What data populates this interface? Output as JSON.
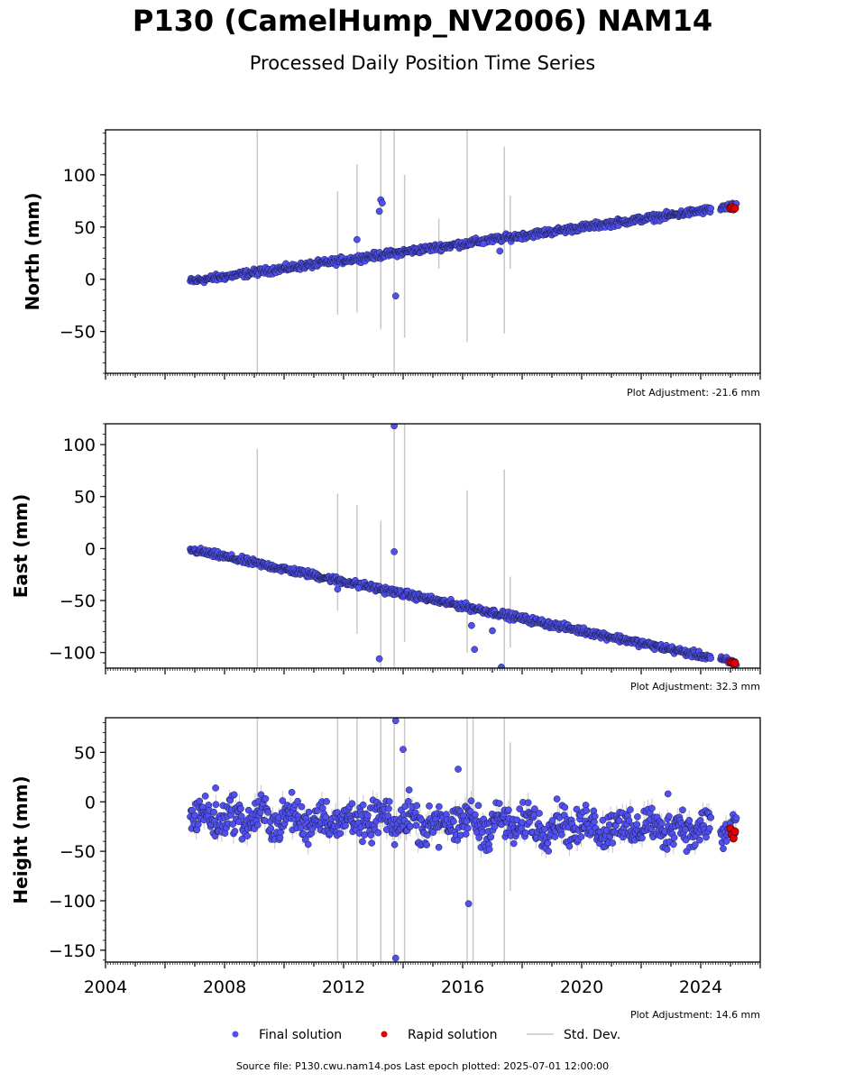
{
  "title": "P130 (CamelHump_NV2006) NAM14",
  "subtitle": "Processed Daily Position Time Series",
  "source_note": "Source file: P130.cwu.nam14.pos  Last epoch plotted: 2025-07-01 12:00:00",
  "legend": {
    "final": "Final solution",
    "rapid": "Rapid solution",
    "std": "Std. Dev."
  },
  "colors": {
    "final": "#5050f0",
    "rapid": "#e00000",
    "std": "#c8c8c8",
    "edge": "#1a1a40"
  },
  "chart_data": [
    {
      "type": "scatter",
      "ylabel": "North (mm)",
      "adjustment": "Plot Adjustment: -21.6 mm",
      "xlim": [
        2004.0,
        2026.0
      ],
      "ylim": [
        -90,
        143
      ],
      "yticks": [
        -50,
        0,
        50,
        100
      ],
      "xticks": [
        2004,
        2008,
        2012,
        2016,
        2020,
        2024
      ],
      "series": [
        {
          "name": "Final solution",
          "trend": {
            "x": [
              2006.85,
              2025.2
            ],
            "y": [
              -2,
              70
            ]
          },
          "gaps": [
            [
              2024.35,
              2024.65
            ]
          ],
          "outliers": [
            [
              2013.25,
              76
            ],
            [
              2013.3,
              73
            ],
            [
              2013.2,
              65
            ],
            [
              2013.75,
              -16
            ],
            [
              2012.45,
              38
            ],
            [
              2017.25,
              27
            ],
            [
              2016.7,
              34
            ]
          ]
        },
        {
          "name": "Rapid solution",
          "points": [
            [
              2025.0,
              68
            ],
            [
              2025.05,
              69
            ],
            [
              2025.1,
              67
            ],
            [
              2025.15,
              68
            ]
          ]
        }
      ],
      "std_dev_bars": [
        [
          2009.1,
          -90,
          143
        ],
        [
          2011.8,
          -34,
          84
        ],
        [
          2012.45,
          -32,
          110
        ],
        [
          2013.25,
          -48,
          143
        ],
        [
          2013.7,
          -90,
          143
        ],
        [
          2014.05,
          -56,
          100
        ],
        [
          2016.15,
          -60,
          143
        ],
        [
          2017.4,
          -52,
          127
        ],
        [
          2017.6,
          10,
          80
        ],
        [
          2015.2,
          10,
          58
        ]
      ]
    },
    {
      "type": "scatter",
      "ylabel": "East (mm)",
      "adjustment": "Plot Adjustment: 32.3 mm",
      "xlim": [
        2004.0,
        2026.0
      ],
      "ylim": [
        -115,
        120
      ],
      "yticks": [
        -100,
        -50,
        0,
        50,
        100
      ],
      "xticks": [
        2004,
        2008,
        2012,
        2016,
        2020,
        2024
      ],
      "series": [
        {
          "name": "Final solution",
          "trend": {
            "x": [
              2006.85,
              2025.2
            ],
            "y": [
              -1,
              -110
            ]
          },
          "gaps": [
            [
              2024.35,
              2024.65
            ]
          ],
          "outliers": [
            [
              2013.7,
              118
            ],
            [
              2013.7,
              -3
            ],
            [
              2013.2,
              -106
            ],
            [
              2016.3,
              -74
            ],
            [
              2016.4,
              -97
            ],
            [
              2017.0,
              -79
            ],
            [
              2017.3,
              -114
            ],
            [
              2011.8,
              -39
            ],
            [
              2012.5,
              -38
            ]
          ]
        },
        {
          "name": "Rapid solution",
          "points": [
            [
              2025.0,
              -109
            ],
            [
              2025.05,
              -110
            ],
            [
              2025.1,
              -111
            ],
            [
              2025.15,
              -110
            ]
          ]
        }
      ],
      "std_dev_bars": [
        [
          2009.1,
          -115,
          96
        ],
        [
          2011.8,
          -60,
          53
        ],
        [
          2012.45,
          -82,
          42
        ],
        [
          2013.25,
          -115,
          27
        ],
        [
          2013.7,
          -115,
          120
        ],
        [
          2014.05,
          -90,
          120
        ],
        [
          2016.15,
          -100,
          56
        ],
        [
          2017.4,
          -115,
          76
        ],
        [
          2017.6,
          -95,
          -27
        ]
      ]
    },
    {
      "type": "scatter",
      "ylabel": "Height (mm)",
      "adjustment": "Plot Adjustment: 14.6 mm",
      "xlim": [
        2004.0,
        2026.0
      ],
      "ylim": [
        -162,
        85
      ],
      "yticks": [
        -150,
        -100,
        -50,
        0,
        50
      ],
      "xticks": [
        2004,
        2008,
        2012,
        2016,
        2020,
        2024
      ],
      "xticklabels": [
        "2004",
        "2008",
        "2012",
        "2016",
        "2020",
        "2024"
      ],
      "series": [
        {
          "name": "Final solution",
          "trend": {
            "x": [
              2006.85,
              2025.2
            ],
            "y": [
              -15,
              -28
            ]
          },
          "gaps": [
            [
              2024.35,
              2024.65
            ]
          ],
          "outliers": [
            [
              2013.75,
              82
            ],
            [
              2014.0,
              53
            ],
            [
              2016.2,
              -103
            ],
            [
              2013.75,
              -158
            ],
            [
              2007.7,
              14
            ],
            [
              2015.85,
              33
            ],
            [
              2022.9,
              8
            ],
            [
              2015.2,
              -46
            ],
            [
              2016.9,
              -48
            ],
            [
              2014.2,
              12
            ]
          ]
        },
        {
          "name": "Rapid solution",
          "points": [
            [
              2025.0,
              -27
            ],
            [
              2025.05,
              -33
            ],
            [
              2025.1,
              -37
            ],
            [
              2025.15,
              -30
            ]
          ]
        }
      ],
      "std_dev_bars": [
        [
          2009.1,
          -162,
          85
        ],
        [
          2011.8,
          -162,
          85
        ],
        [
          2012.45,
          -162,
          85
        ],
        [
          2013.25,
          -162,
          85
        ],
        [
          2013.7,
          -162,
          85
        ],
        [
          2014.05,
          -162,
          85
        ],
        [
          2016.15,
          -162,
          85
        ],
        [
          2016.35,
          -162,
          85
        ],
        [
          2017.4,
          -162,
          85
        ],
        [
          2017.6,
          -90,
          60
        ]
      ]
    }
  ]
}
